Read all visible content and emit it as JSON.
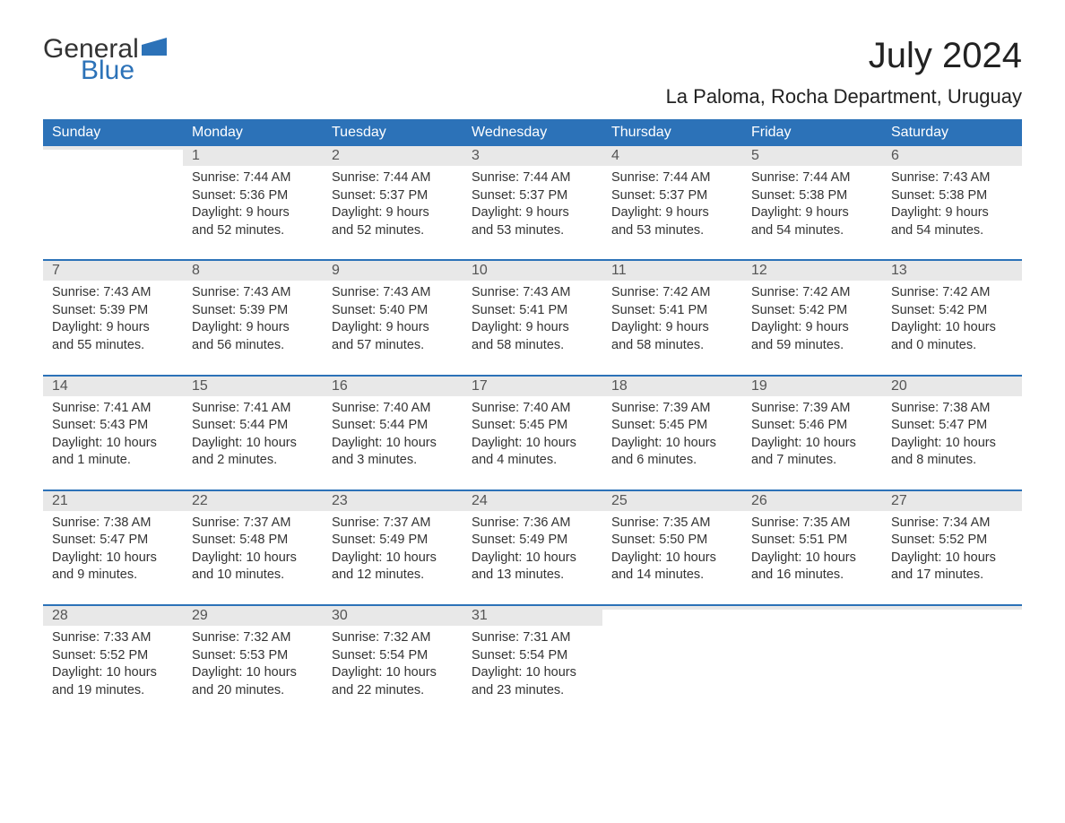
{
  "brand": {
    "text1": "General",
    "text2": "Blue",
    "color1": "#333333",
    "color2": "#2c72b8"
  },
  "title": "July 2024",
  "location": "La Paloma, Rocha Department, Uruguay",
  "colors": {
    "header_bg": "#2c72b8",
    "header_text": "#ffffff",
    "daynum_bg": "#e8e8e8",
    "text": "#333333",
    "border": "#2c72b8"
  },
  "fonts": {
    "title_size": 40,
    "location_size": 22,
    "weekday_size": 16,
    "daynum_size": 16,
    "body_size": 14.5
  },
  "weekdays": [
    "Sunday",
    "Monday",
    "Tuesday",
    "Wednesday",
    "Thursday",
    "Friday",
    "Saturday"
  ],
  "weeks": [
    [
      {
        "num": "",
        "sunrise": "",
        "sunset": "",
        "daylight1": "",
        "daylight2": ""
      },
      {
        "num": "1",
        "sunrise": "Sunrise: 7:44 AM",
        "sunset": "Sunset: 5:36 PM",
        "daylight1": "Daylight: 9 hours",
        "daylight2": "and 52 minutes."
      },
      {
        "num": "2",
        "sunrise": "Sunrise: 7:44 AM",
        "sunset": "Sunset: 5:37 PM",
        "daylight1": "Daylight: 9 hours",
        "daylight2": "and 52 minutes."
      },
      {
        "num": "3",
        "sunrise": "Sunrise: 7:44 AM",
        "sunset": "Sunset: 5:37 PM",
        "daylight1": "Daylight: 9 hours",
        "daylight2": "and 53 minutes."
      },
      {
        "num": "4",
        "sunrise": "Sunrise: 7:44 AM",
        "sunset": "Sunset: 5:37 PM",
        "daylight1": "Daylight: 9 hours",
        "daylight2": "and 53 minutes."
      },
      {
        "num": "5",
        "sunrise": "Sunrise: 7:44 AM",
        "sunset": "Sunset: 5:38 PM",
        "daylight1": "Daylight: 9 hours",
        "daylight2": "and 54 minutes."
      },
      {
        "num": "6",
        "sunrise": "Sunrise: 7:43 AM",
        "sunset": "Sunset: 5:38 PM",
        "daylight1": "Daylight: 9 hours",
        "daylight2": "and 54 minutes."
      }
    ],
    [
      {
        "num": "7",
        "sunrise": "Sunrise: 7:43 AM",
        "sunset": "Sunset: 5:39 PM",
        "daylight1": "Daylight: 9 hours",
        "daylight2": "and 55 minutes."
      },
      {
        "num": "8",
        "sunrise": "Sunrise: 7:43 AM",
        "sunset": "Sunset: 5:39 PM",
        "daylight1": "Daylight: 9 hours",
        "daylight2": "and 56 minutes."
      },
      {
        "num": "9",
        "sunrise": "Sunrise: 7:43 AM",
        "sunset": "Sunset: 5:40 PM",
        "daylight1": "Daylight: 9 hours",
        "daylight2": "and 57 minutes."
      },
      {
        "num": "10",
        "sunrise": "Sunrise: 7:43 AM",
        "sunset": "Sunset: 5:41 PM",
        "daylight1": "Daylight: 9 hours",
        "daylight2": "and 58 minutes."
      },
      {
        "num": "11",
        "sunrise": "Sunrise: 7:42 AM",
        "sunset": "Sunset: 5:41 PM",
        "daylight1": "Daylight: 9 hours",
        "daylight2": "and 58 minutes."
      },
      {
        "num": "12",
        "sunrise": "Sunrise: 7:42 AM",
        "sunset": "Sunset: 5:42 PM",
        "daylight1": "Daylight: 9 hours",
        "daylight2": "and 59 minutes."
      },
      {
        "num": "13",
        "sunrise": "Sunrise: 7:42 AM",
        "sunset": "Sunset: 5:42 PM",
        "daylight1": "Daylight: 10 hours",
        "daylight2": "and 0 minutes."
      }
    ],
    [
      {
        "num": "14",
        "sunrise": "Sunrise: 7:41 AM",
        "sunset": "Sunset: 5:43 PM",
        "daylight1": "Daylight: 10 hours",
        "daylight2": "and 1 minute."
      },
      {
        "num": "15",
        "sunrise": "Sunrise: 7:41 AM",
        "sunset": "Sunset: 5:44 PM",
        "daylight1": "Daylight: 10 hours",
        "daylight2": "and 2 minutes."
      },
      {
        "num": "16",
        "sunrise": "Sunrise: 7:40 AM",
        "sunset": "Sunset: 5:44 PM",
        "daylight1": "Daylight: 10 hours",
        "daylight2": "and 3 minutes."
      },
      {
        "num": "17",
        "sunrise": "Sunrise: 7:40 AM",
        "sunset": "Sunset: 5:45 PM",
        "daylight1": "Daylight: 10 hours",
        "daylight2": "and 4 minutes."
      },
      {
        "num": "18",
        "sunrise": "Sunrise: 7:39 AM",
        "sunset": "Sunset: 5:45 PM",
        "daylight1": "Daylight: 10 hours",
        "daylight2": "and 6 minutes."
      },
      {
        "num": "19",
        "sunrise": "Sunrise: 7:39 AM",
        "sunset": "Sunset: 5:46 PM",
        "daylight1": "Daylight: 10 hours",
        "daylight2": "and 7 minutes."
      },
      {
        "num": "20",
        "sunrise": "Sunrise: 7:38 AM",
        "sunset": "Sunset: 5:47 PM",
        "daylight1": "Daylight: 10 hours",
        "daylight2": "and 8 minutes."
      }
    ],
    [
      {
        "num": "21",
        "sunrise": "Sunrise: 7:38 AM",
        "sunset": "Sunset: 5:47 PM",
        "daylight1": "Daylight: 10 hours",
        "daylight2": "and 9 minutes."
      },
      {
        "num": "22",
        "sunrise": "Sunrise: 7:37 AM",
        "sunset": "Sunset: 5:48 PM",
        "daylight1": "Daylight: 10 hours",
        "daylight2": "and 10 minutes."
      },
      {
        "num": "23",
        "sunrise": "Sunrise: 7:37 AM",
        "sunset": "Sunset: 5:49 PM",
        "daylight1": "Daylight: 10 hours",
        "daylight2": "and 12 minutes."
      },
      {
        "num": "24",
        "sunrise": "Sunrise: 7:36 AM",
        "sunset": "Sunset: 5:49 PM",
        "daylight1": "Daylight: 10 hours",
        "daylight2": "and 13 minutes."
      },
      {
        "num": "25",
        "sunrise": "Sunrise: 7:35 AM",
        "sunset": "Sunset: 5:50 PM",
        "daylight1": "Daylight: 10 hours",
        "daylight2": "and 14 minutes."
      },
      {
        "num": "26",
        "sunrise": "Sunrise: 7:35 AM",
        "sunset": "Sunset: 5:51 PM",
        "daylight1": "Daylight: 10 hours",
        "daylight2": "and 16 minutes."
      },
      {
        "num": "27",
        "sunrise": "Sunrise: 7:34 AM",
        "sunset": "Sunset: 5:52 PM",
        "daylight1": "Daylight: 10 hours",
        "daylight2": "and 17 minutes."
      }
    ],
    [
      {
        "num": "28",
        "sunrise": "Sunrise: 7:33 AM",
        "sunset": "Sunset: 5:52 PM",
        "daylight1": "Daylight: 10 hours",
        "daylight2": "and 19 minutes."
      },
      {
        "num": "29",
        "sunrise": "Sunrise: 7:32 AM",
        "sunset": "Sunset: 5:53 PM",
        "daylight1": "Daylight: 10 hours",
        "daylight2": "and 20 minutes."
      },
      {
        "num": "30",
        "sunrise": "Sunrise: 7:32 AM",
        "sunset": "Sunset: 5:54 PM",
        "daylight1": "Daylight: 10 hours",
        "daylight2": "and 22 minutes."
      },
      {
        "num": "31",
        "sunrise": "Sunrise: 7:31 AM",
        "sunset": "Sunset: 5:54 PM",
        "daylight1": "Daylight: 10 hours",
        "daylight2": "and 23 minutes."
      },
      {
        "num": "",
        "sunrise": "",
        "sunset": "",
        "daylight1": "",
        "daylight2": ""
      },
      {
        "num": "",
        "sunrise": "",
        "sunset": "",
        "daylight1": "",
        "daylight2": ""
      },
      {
        "num": "",
        "sunrise": "",
        "sunset": "",
        "daylight1": "",
        "daylight2": ""
      }
    ]
  ]
}
